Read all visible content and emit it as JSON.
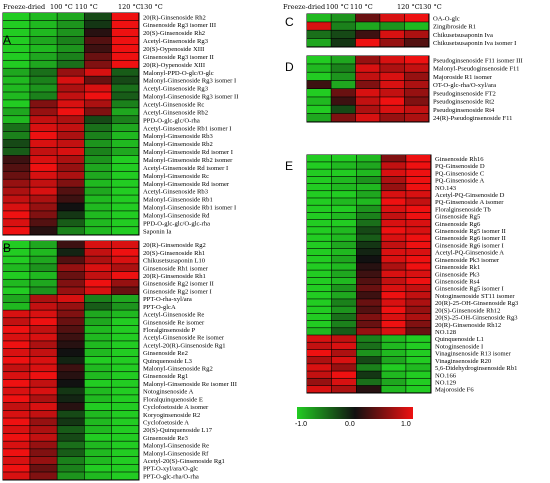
{
  "header": {
    "conditions": [
      "Freeze-dried",
      "100 °C",
      "110 °C",
      "120 °C",
      "130 °C"
    ]
  },
  "legend": {
    "ticks": [
      "-1.0",
      "0.0",
      "1.0"
    ],
    "colors": {
      "low": "#22cc22",
      "mid": "#111111",
      "high": "#ee1111"
    }
  },
  "chart_data": [
    {
      "type": "heatmap",
      "panel": "A",
      "columns": [
        "Freeze-dried",
        "100 °C",
        "110 °C",
        "120 °C",
        "130 °C"
      ],
      "rows": [
        "20(R)-Ginsenoside Rh2",
        "Ginsenoside Rg3 isomer III",
        "20(S)-Ginsenoside Rh2",
        "Acetyl-Ginsenoside Rg3",
        "20(S)-Oypenoside XIII",
        "Ginsenoside Rg3 isomer II",
        "20(R)-Oypenoside XIII",
        "Malonyl-PPD-O-glc/O-glc",
        "Malonyl-Ginsenoside Rg3 isomer I",
        "Acetyl-Ginsenoside Rg3",
        "Malonyl-Ginsenoside Rg3 isomer II",
        "Acetyl-Ginsenoside Rc",
        "Acetyl-Ginsenoside Rb2",
        "PPD-O-glc-glc/O-rha",
        "Acetyl-Ginsenoside Rb1 isomer I",
        "Malonyl-Ginsenoside Rb3",
        "Malonyl-Ginsenoside Rb2",
        "Malonyl-Ginsenoside Rd isomer I",
        "Malonyl-Ginsenoside Rb2 isomer",
        "Acetyl-Ginsenoside Rd isomer I",
        "Malonyl-Ginsenoside Rc",
        "Malonyl-Ginsenoside Rd isomer",
        "Acetyl-Ginsenoside Rb3",
        "Malonyl-Ginsenoside Rb1",
        "Malonyl-Ginsenoside Rb1 isomer I",
        "Malonyl-Ginsenoside Rd",
        "PPD-O-glc-glc/O-glc-rha",
        "Saponin Ia"
      ],
      "values": [
        [
          -1,
          -0.9,
          -0.8,
          -0.3,
          1
        ],
        [
          -1,
          -0.9,
          -0.7,
          -0.2,
          1
        ],
        [
          -1,
          -0.9,
          -0.7,
          0.1,
          1
        ],
        [
          -1,
          -0.8,
          -0.6,
          0.3,
          1
        ],
        [
          -1,
          -0.9,
          -0.7,
          0.2,
          1
        ],
        [
          -1,
          -0.8,
          -0.6,
          0.4,
          1
        ],
        [
          -1,
          -0.8,
          -0.5,
          0.5,
          1
        ],
        [
          -0.8,
          -0.5,
          0.6,
          0.9,
          -0.4
        ],
        [
          -0.9,
          -0.6,
          0.9,
          0.4,
          -0.3
        ],
        [
          -0.9,
          -0.7,
          0.7,
          0.9,
          -0.5
        ],
        [
          -0.9,
          -0.6,
          0.8,
          1,
          -0.4
        ],
        [
          -1,
          0.5,
          0.9,
          0.7,
          -0.6
        ],
        [
          -0.8,
          0.6,
          1,
          0.5,
          -0.8
        ],
        [
          -0.9,
          0.8,
          0.7,
          -0.3,
          -0.6
        ],
        [
          -0.5,
          0.9,
          0.8,
          -0.5,
          -0.8
        ],
        [
          -0.6,
          1,
          0.7,
          -0.6,
          -0.9
        ],
        [
          -0.3,
          0.9,
          0.8,
          -0.7,
          -0.9
        ],
        [
          -0.4,
          0.8,
          0.9,
          -0.6,
          -0.8
        ],
        [
          0.2,
          0.9,
          0.7,
          -0.7,
          -1
        ],
        [
          0.3,
          1,
          0.6,
          -0.8,
          -1
        ],
        [
          0.4,
          0.9,
          0.7,
          -0.8,
          -1
        ],
        [
          0.6,
          0.8,
          0.5,
          -0.9,
          -1
        ],
        [
          0.7,
          0.9,
          0.3,
          -0.8,
          -1
        ],
        [
          0.8,
          0.7,
          0.2,
          -0.9,
          -1
        ],
        [
          0.9,
          0.6,
          0,
          -0.9,
          -1
        ],
        [
          1,
          0.5,
          -0.2,
          -0.9,
          -1
        ],
        [
          0.9,
          0.3,
          -0.4,
          -0.9,
          -1
        ],
        [
          1,
          0.1,
          -0.6,
          -0.9,
          -1
        ]
      ]
    },
    {
      "type": "heatmap",
      "panel": "B",
      "columns": [
        "Freeze-dried",
        "100 °C",
        "110 °C",
        "120 °C",
        "130 °C"
      ],
      "rows": [
        "20(R)-Ginsenoside Rg2",
        "20(S)-Ginsenoside Rh1",
        "Chikusetsusaponin L10",
        "Ginsenoside Rh1 isomer",
        "20(R)-Ginsenoside Rh1",
        "Ginsenoside Rg2 isomer II",
        "Ginsenoside Rg2 isomer I",
        "PPT-O-rha-xyl/ara",
        "PPT-O-glcA",
        "Acetyl-Ginsenoside Re",
        "Ginsenoside Re isomer",
        "Floralginsenoside P",
        "Acetyl-Ginsenoside Re isomer",
        "Acetyl-20(R)-Ginsenoside Rg1",
        "Ginsenoside Re2",
        "Quinquenoside L3",
        "Malonyl-Ginsenoside Rg2",
        "Ginsenoside Rg1",
        "Malonyl-Ginsenoside Re isomer III",
        "Notoginsenoside A",
        "Floralquinquenoside E",
        "Cyclofoetoside A isomer",
        "Koryoginsenoside R2",
        "Cyclofoetoside A",
        "20(S)-Quinquenoside L17",
        "Ginsenoside Re3",
        "Malonyl-Ginsenoside Re",
        "Malonyl-Ginsenoside Rf",
        "Acetyl-20(S)-Ginsenoside Rg1",
        "PPT-O-xyl/ara/O-glc",
        "PPT-O-glc-rha/O-rha"
      ],
      "values": [
        [
          -1,
          -0.8,
          0.2,
          0.9,
          0.9
        ],
        [
          -1,
          -0.9,
          -0.1,
          0.8,
          1
        ],
        [
          -1,
          -0.8,
          0.3,
          0.7,
          0.9
        ],
        [
          -0.9,
          -0.7,
          0.6,
          0.9,
          0.7
        ],
        [
          -1,
          -0.9,
          0.4,
          0.8,
          1
        ],
        [
          -0.9,
          -0.8,
          0.5,
          1,
          0.6
        ],
        [
          -1,
          -0.7,
          0.6,
          0.9,
          0.4
        ],
        [
          -0.8,
          0.7,
          0.9,
          -0.6,
          -0.8
        ],
        [
          -0.9,
          0.8,
          0.6,
          -0.4,
          -0.7
        ],
        [
          0.9,
          0.9,
          0.5,
          -0.8,
          -0.9
        ],
        [
          0.8,
          1,
          0.4,
          -0.8,
          -1
        ],
        [
          1,
          0.8,
          0.3,
          -0.9,
          -1
        ],
        [
          0.9,
          0.9,
          0.2,
          -0.9,
          -1
        ],
        [
          1,
          0.7,
          0.1,
          -0.9,
          -1
        ],
        [
          0.9,
          0.8,
          0,
          -0.9,
          -1
        ],
        [
          1,
          0.9,
          -0.1,
          -1,
          -1
        ],
        [
          0.8,
          0.9,
          0.2,
          -0.9,
          -1
        ],
        [
          0.9,
          1,
          0.1,
          -0.9,
          -1
        ],
        [
          1,
          0.8,
          0,
          -1,
          -1
        ],
        [
          0.9,
          0.9,
          -0.2,
          -0.9,
          -1
        ],
        [
          1,
          0.7,
          -0.1,
          -0.9,
          -1
        ],
        [
          0.8,
          0.9,
          0.1,
          -1,
          -1
        ],
        [
          0.9,
          0.8,
          -0.3,
          -0.9,
          -1
        ],
        [
          1,
          0.6,
          -0.2,
          -0.9,
          -1
        ],
        [
          0.9,
          0.7,
          -0.4,
          -0.9,
          -1
        ],
        [
          1,
          0.8,
          -0.3,
          -1,
          -1
        ],
        [
          0.9,
          0.6,
          -0.5,
          -0.9,
          -1
        ],
        [
          1,
          0.5,
          -0.4,
          -0.9,
          -1
        ],
        [
          0.9,
          0.6,
          -0.6,
          -0.9,
          -1
        ],
        [
          1,
          0.4,
          -0.6,
          -1,
          -1
        ],
        [
          0.9,
          0.5,
          -0.7,
          -0.9,
          -1
        ]
      ]
    },
    {
      "type": "heatmap",
      "panel": "C",
      "columns": [
        "Freeze-dried",
        "100 °C",
        "110 °C",
        "120 °C",
        "130 °C"
      ],
      "rows": [
        "OA-O-glc",
        "Zingibroside R1",
        "Chikusetsusaponin Iva",
        "Chikusetsusaponin Iva isomer I"
      ],
      "values": [
        [
          -0.9,
          -0.7,
          0.4,
          0.9,
          1
        ],
        [
          0.9,
          -0.6,
          -0.8,
          -0.7,
          -0.9
        ],
        [
          -0.5,
          -0.3,
          0.2,
          0.9,
          0.7
        ],
        [
          -0.8,
          -0.2,
          1,
          0.6,
          0.3
        ]
      ]
    },
    {
      "type": "heatmap",
      "panel": "D",
      "columns": [
        "Freeze-dried",
        "100 °C",
        "110 °C",
        "120 °C",
        "130 °C"
      ],
      "rows": [
        "Pseudoginsenoside F11 isomer III",
        "Malonyl-Pseudoginsenoside F11",
        "Majoroside R1 isomer",
        "OT-O-glc-rha/O-xyl/ara",
        "Pseudoginsenoside FT2",
        "Pseudoginsenoside Rt2",
        "Pseudoginsenoside Rt4",
        "24(R)-Pseudoginsenoside F11"
      ],
      "values": [
        [
          -1,
          -0.8,
          0.6,
          0.9,
          1
        ],
        [
          -0.9,
          -0.6,
          0.9,
          0.7,
          0.8
        ],
        [
          -1,
          -0.7,
          0.8,
          0.9,
          0.6
        ],
        [
          0.2,
          -0.8,
          0.5,
          0.9,
          0.7
        ],
        [
          -1,
          0.4,
          0.9,
          0.8,
          0.6
        ],
        [
          -0.9,
          0.2,
          0.8,
          1,
          0.5
        ],
        [
          -1,
          -0.3,
          0.7,
          0.9,
          0.8
        ],
        [
          -0.8,
          0.5,
          0.9,
          0.6,
          0.7
        ]
      ]
    },
    {
      "type": "heatmap",
      "panel": "E",
      "columns": [
        "Freeze-dried",
        "100 °C",
        "110 °C",
        "120 °C",
        "130 °C"
      ],
      "rows": [
        "Ginsenoside Rh16",
        "PQ-Ginsenoside D",
        "PQ-Ginsenoside C",
        "PQ-Ginsenoside A",
        "NO.143",
        "Acetyl-PQ-Ginsenoside D",
        "PQ-Ginsenoside A isomer",
        "Floralginsenoside Tb",
        "Ginsenoside Rg5",
        "Ginsenoside Rg6",
        "Ginsenoside Rg5 isomer II",
        "Ginsenoside Rg6 isomer II",
        "Ginsenoside Rg6 isomer I",
        "Acetyl-PQ-Ginsenoside A",
        "Ginsenoside Pk3 isomer",
        "Ginsenoside Rk1",
        "Ginsenoside Pk3",
        "Ginsenoside Rs4",
        "Ginsenoside Rg5 isomer I",
        "Notoginsenoside ST11 isomer",
        "20(R)-25-OH-Ginsenoside Rg3",
        "20(S)-Ginsenoside Rh12",
        "20(S)-25-OH-Ginsenoside Rg3",
        "20(R)-Ginsenoside Rh12",
        "NO.128",
        "Quinquenoside L1",
        "Notoginsenoside I",
        "Vinaginsenoside R13 isomer",
        "Vinaginsenoside R20",
        "5,6-Didehydroginsenoside Rb1",
        "NO.166",
        "NO.129",
        "Majoroside F6"
      ],
      "values": [
        [
          -1,
          -1,
          -0.9,
          0.5,
          1
        ],
        [
          -1,
          -0.9,
          -0.8,
          0.8,
          1
        ],
        [
          -1,
          -1,
          -0.9,
          0.9,
          1
        ],
        [
          -1,
          -0.9,
          -0.7,
          0.7,
          1
        ],
        [
          -1,
          -0.9,
          -0.9,
          0.6,
          1
        ],
        [
          -1,
          -1,
          -0.8,
          0.9,
          0.9
        ],
        [
          -1,
          -0.9,
          -0.9,
          1,
          0.8
        ],
        [
          -1,
          -1,
          -0.7,
          0.9,
          1
        ],
        [
          -1,
          -0.9,
          -0.6,
          0.8,
          1
        ],
        [
          -1,
          -1,
          -0.5,
          0.9,
          0.9
        ],
        [
          -1,
          -0.9,
          -0.3,
          1,
          0.9
        ],
        [
          -1,
          -0.9,
          -0.4,
          0.9,
          1
        ],
        [
          -1,
          -0.8,
          -0.2,
          0.8,
          1
        ],
        [
          -1,
          -0.9,
          -0.1,
          0.9,
          0.9
        ],
        [
          -1,
          -0.8,
          0,
          0.9,
          1
        ],
        [
          -1,
          -0.9,
          0.1,
          0.7,
          1
        ],
        [
          -1,
          -0.8,
          0.2,
          0.9,
          0.9
        ],
        [
          -1,
          -0.9,
          0.3,
          0.8,
          1
        ],
        [
          -1,
          -0.7,
          0.4,
          0.9,
          0.8
        ],
        [
          -1,
          -0.8,
          0.2,
          1,
          0.8
        ],
        [
          -1,
          -0.6,
          0.4,
          0.9,
          0.7
        ],
        [
          -1,
          -0.7,
          0.3,
          1,
          0.6
        ],
        [
          -1,
          -0.5,
          0.5,
          0.9,
          0.7
        ],
        [
          -1,
          -0.6,
          0.4,
          1,
          0.5
        ],
        [
          -0.9,
          -0.4,
          0.6,
          0.9,
          0.4
        ],
        [
          0.9,
          0.8,
          -0.6,
          -0.9,
          -1
        ],
        [
          0.8,
          0.9,
          -0.5,
          -0.9,
          -1
        ],
        [
          1,
          0.7,
          -0.7,
          -0.9,
          -1
        ],
        [
          0.7,
          0.9,
          -0.3,
          -0.8,
          -1
        ],
        [
          0.9,
          0.6,
          -0.6,
          -1,
          -0.9
        ],
        [
          0.8,
          1,
          -0.2,
          -0.9,
          -1
        ],
        [
          0.6,
          0.9,
          -0.5,
          -0.8,
          -1
        ],
        [
          0.9,
          0.7,
          0.1,
          -0.9,
          -1
        ]
      ]
    }
  ]
}
